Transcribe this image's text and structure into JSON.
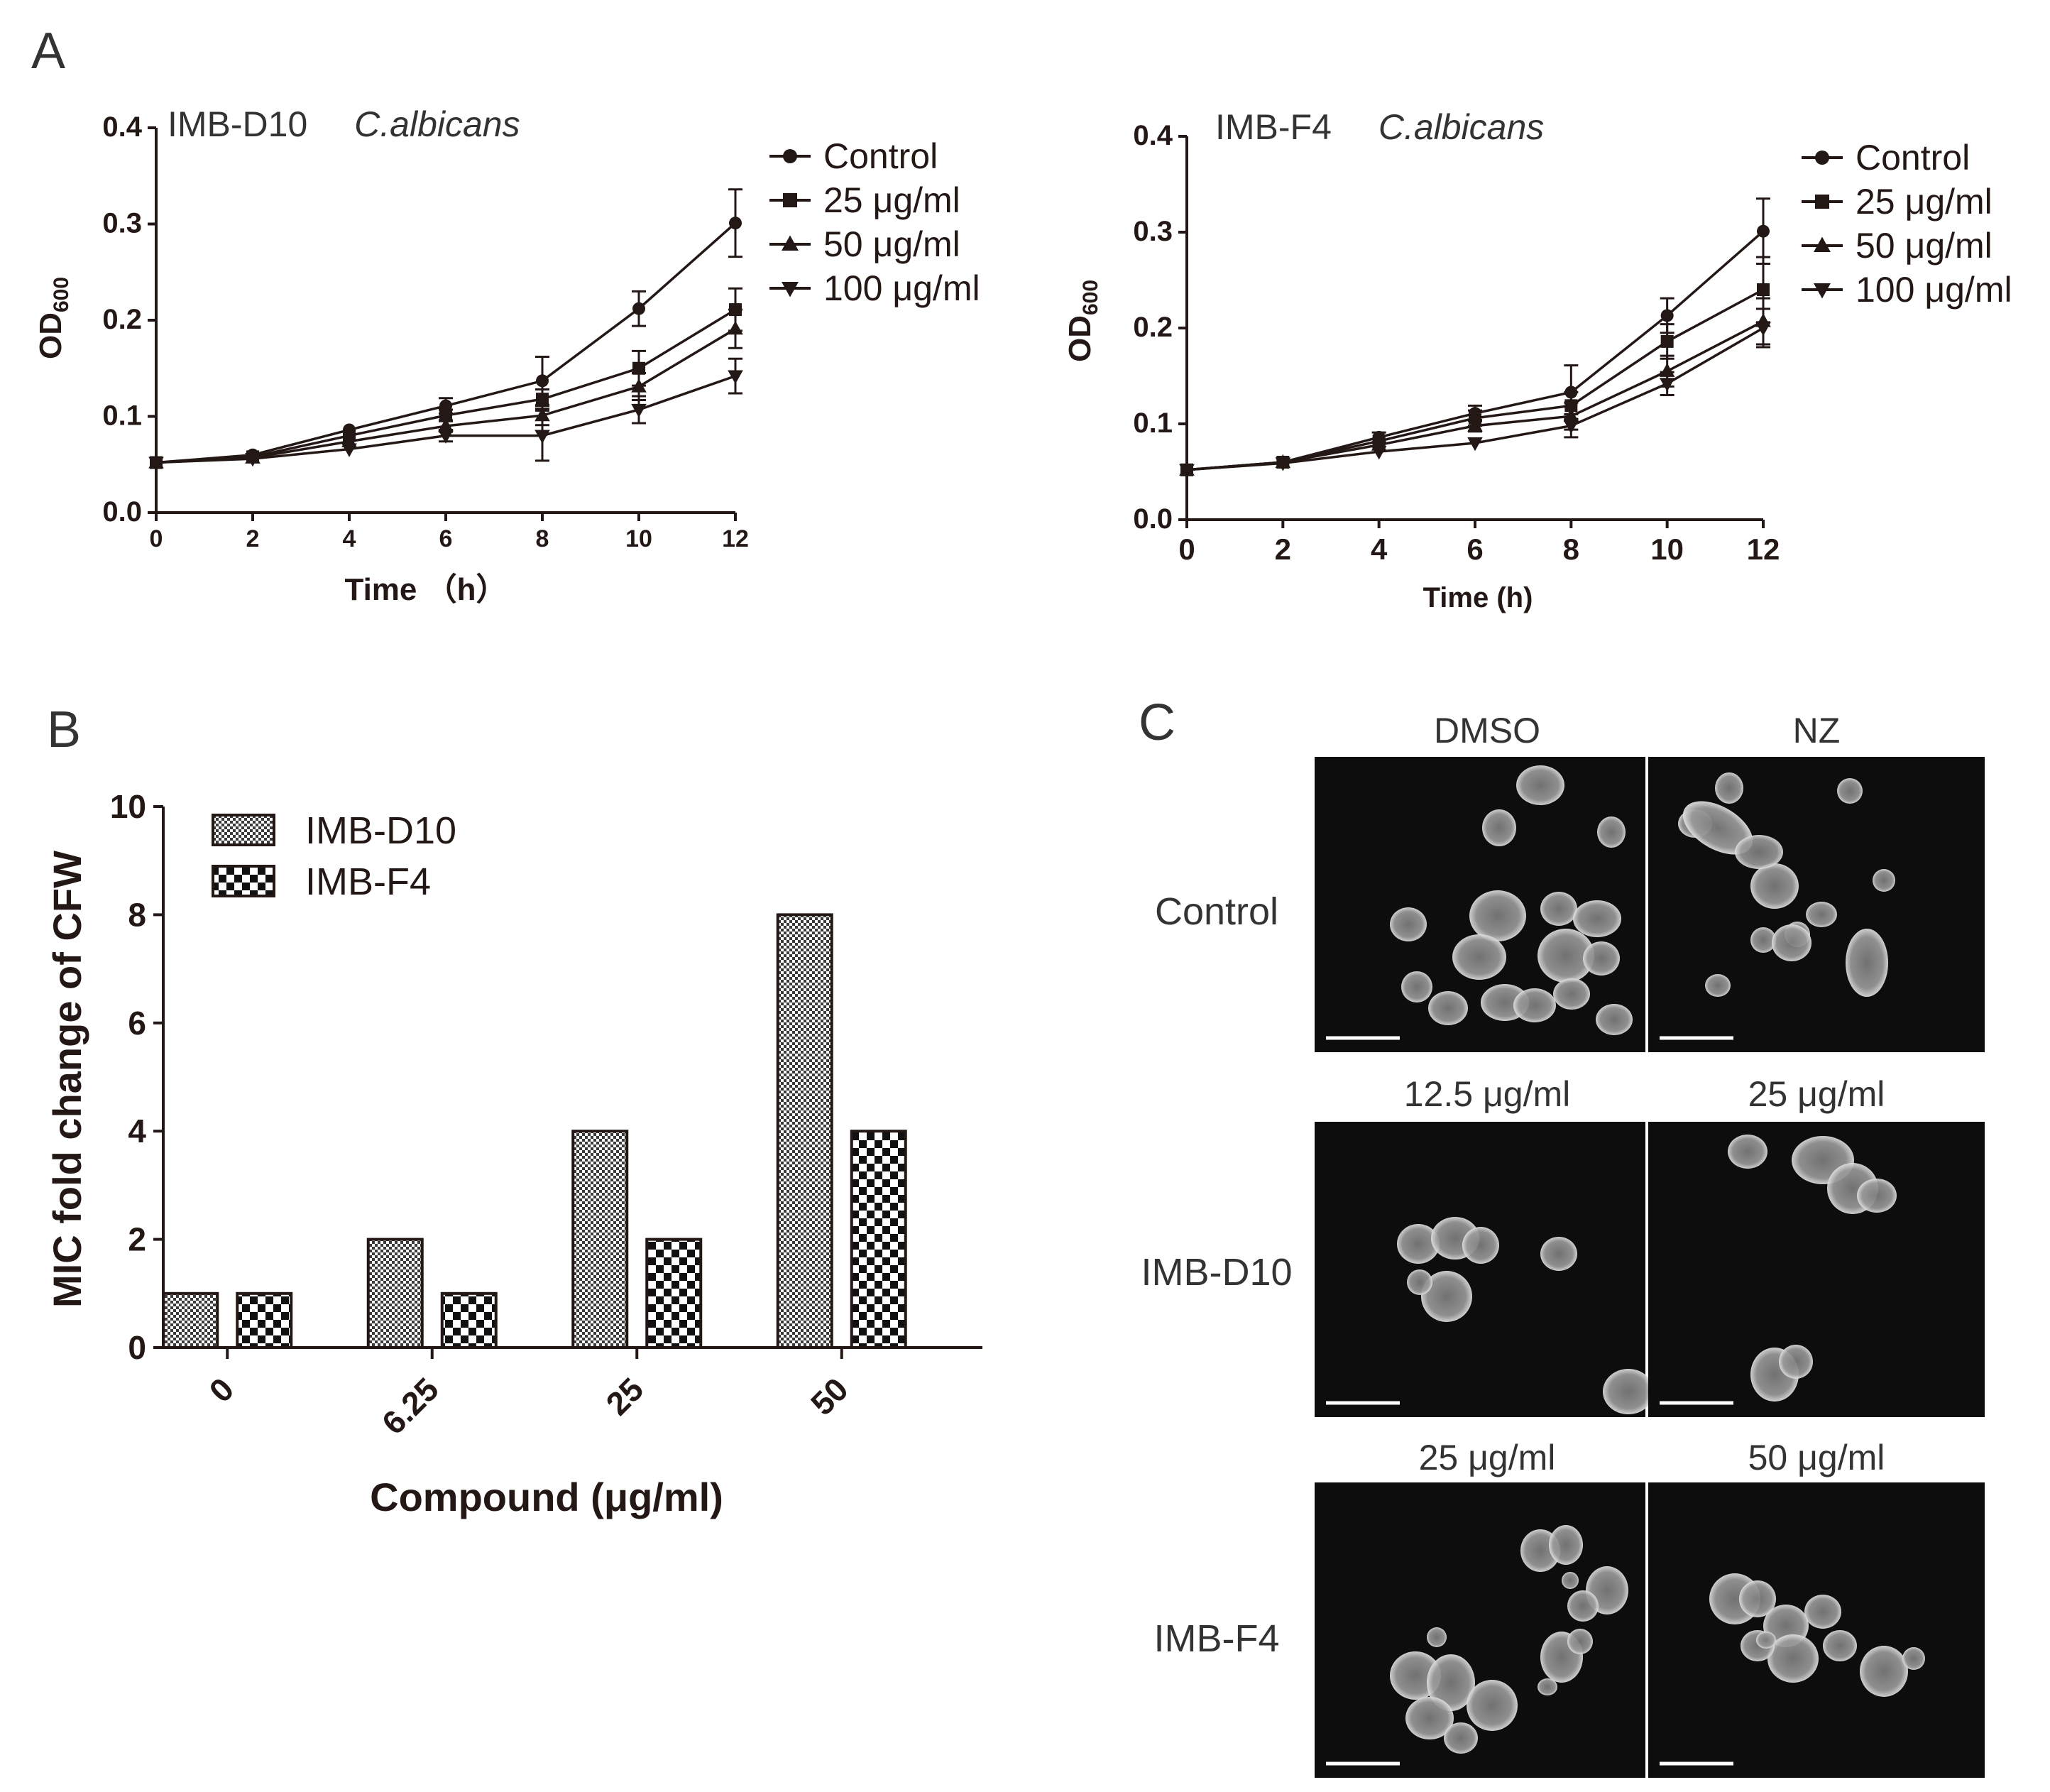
{
  "panels": {
    "A": "A",
    "B": "B",
    "C": "C"
  },
  "chart_data": [
    {
      "type": "line",
      "title_strain": "IMB-D10",
      "title_species": "C.albicans",
      "xlabel": "Time （h）",
      "ylabel": "OD",
      "ylabel_sub": "600",
      "x": [
        0,
        2,
        4,
        6,
        8,
        10,
        12
      ],
      "xlim": [
        0,
        12
      ],
      "ylim": [
        0.0,
        0.4
      ],
      "yticks": [
        "0.0",
        "0.1",
        "0.2",
        "0.3",
        "0.4"
      ],
      "xticks": [
        "0",
        "2",
        "4",
        "6",
        "8",
        "10",
        "12"
      ],
      "legend_position": "right",
      "series": [
        {
          "name": "Control",
          "marker": "circle",
          "values": [
            0.052,
            0.06,
            0.086,
            0.111,
            0.137,
            0.212,
            0.301
          ],
          "errors": [
            0.003,
            0.003,
            0.004,
            0.008,
            0.025,
            0.018,
            0.035
          ]
        },
        {
          "name": "25 μg/ml",
          "marker": "square",
          "values": [
            0.052,
            0.058,
            0.08,
            0.101,
            0.118,
            0.15,
            0.211
          ],
          "errors": [
            0.003,
            0.003,
            0.004,
            0.006,
            0.01,
            0.018,
            0.022
          ]
        },
        {
          "name": "50 μg/ml",
          "marker": "triangle-up",
          "values": [
            0.052,
            0.057,
            0.074,
            0.09,
            0.101,
            0.131,
            0.191
          ],
          "errors": [
            0.003,
            0.003,
            0.004,
            0.006,
            0.01,
            0.014,
            0.02
          ]
        },
        {
          "name": "100 μg/ml",
          "marker": "triangle-down",
          "values": [
            0.052,
            0.056,
            0.066,
            0.08,
            0.08,
            0.107,
            0.142
          ],
          "errors": [
            0.003,
            0.003,
            0.004,
            0.006,
            0.026,
            0.014,
            0.018
          ]
        }
      ]
    },
    {
      "type": "line",
      "title_strain": "IMB-F4",
      "title_species": "C.albicans",
      "xlabel": "Time (h)",
      "ylabel": "OD",
      "ylabel_sub": "600",
      "x": [
        0,
        2,
        4,
        6,
        8,
        10,
        12
      ],
      "xlim": [
        0,
        12
      ],
      "ylim": [
        0.0,
        0.4
      ],
      "yticks": [
        "0.0",
        "0.1",
        "0.2",
        "0.3",
        "0.4"
      ],
      "xticks": [
        "0",
        "2",
        "4",
        "6",
        "8",
        "10",
        "12"
      ],
      "legend_position": "right",
      "series": [
        {
          "name": "Control",
          "marker": "circle",
          "values": [
            0.052,
            0.06,
            0.086,
            0.111,
            0.133,
            0.213,
            0.301
          ],
          "errors": [
            0.003,
            0.003,
            0.005,
            0.008,
            0.028,
            0.018,
            0.034
          ]
        },
        {
          "name": "25 μg/ml",
          "marker": "square",
          "values": [
            0.052,
            0.06,
            0.082,
            0.106,
            0.119,
            0.186,
            0.24
          ],
          "errors": [
            0.003,
            0.003,
            0.004,
            0.008,
            0.014,
            0.018,
            0.034
          ]
        },
        {
          "name": "50 μg/ml",
          "marker": "triangle-up",
          "values": [
            0.052,
            0.06,
            0.078,
            0.098,
            0.108,
            0.155,
            0.207
          ],
          "errors": [
            0.003,
            0.003,
            0.004,
            0.006,
            0.014,
            0.016,
            0.024
          ]
        },
        {
          "name": "100 μg/ml",
          "marker": "triangle-down",
          "values": [
            0.052,
            0.059,
            0.071,
            0.08,
            0.098,
            0.142,
            0.2
          ],
          "errors": [
            0.003,
            0.003,
            0.004,
            0.004,
            0.012,
            0.012,
            0.02
          ]
        }
      ]
    },
    {
      "type": "bar",
      "xlabel": "Compound (μg/ml)",
      "ylabel": "MIC fold change of CFW",
      "categories": [
        "0",
        "6.25",
        "25",
        "50"
      ],
      "ylim": [
        0,
        10
      ],
      "yticks": [
        "0",
        "2",
        "4",
        "6",
        "8",
        "10"
      ],
      "legend_position": "top-left",
      "series": [
        {
          "name": "IMB-D10",
          "pattern": "fine-checker",
          "values": [
            1,
            2,
            4,
            8
          ]
        },
        {
          "name": "IMB-F4",
          "pattern": "coarse-checker",
          "values": [
            1,
            1,
            2,
            4
          ]
        }
      ]
    }
  ],
  "micrographs": {
    "rows": [
      {
        "label": "Control",
        "columns": [
          "DMSO",
          "NZ"
        ]
      },
      {
        "label": "IMB-D10",
        "columns": [
          "12.5 μg/ml",
          "25 μg/ml"
        ]
      },
      {
        "label": "IMB-F4",
        "columns": [
          "25 μg/ml",
          "50 μg/ml"
        ]
      }
    ]
  }
}
